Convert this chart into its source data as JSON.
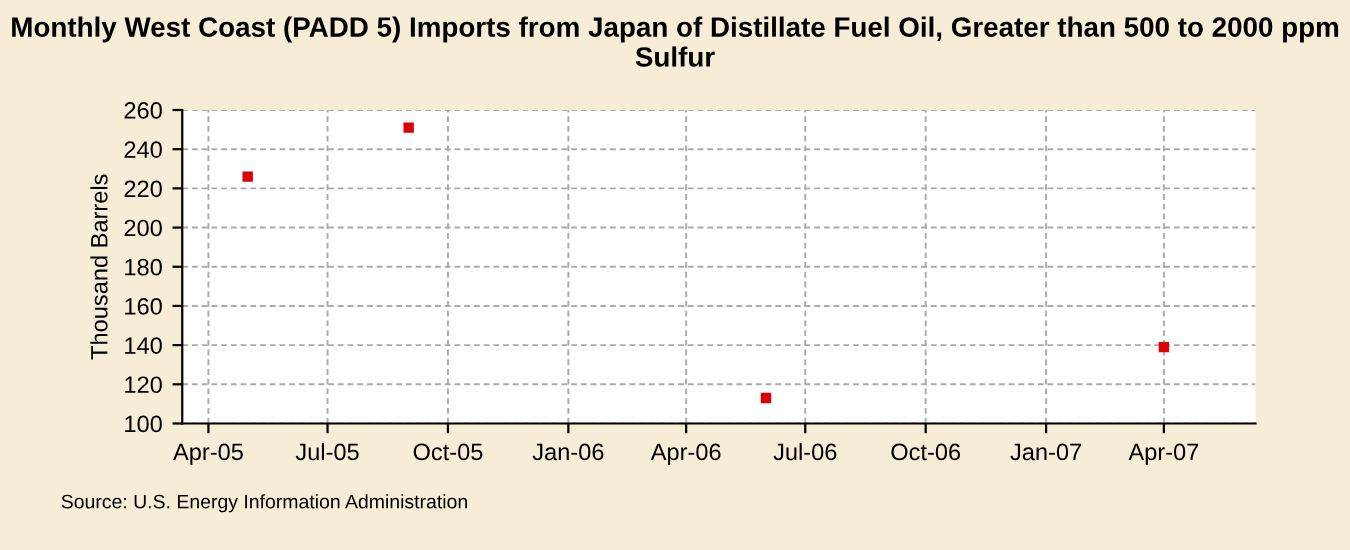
{
  "chart_data": {
    "type": "scatter",
    "title": "Monthly West Coast (PADD 5) Imports from Japan of Distillate Fuel Oil, Greater than 500 to 2000 ppm Sulfur",
    "ylabel": "Thousand Barrels",
    "x": [
      "2005-05",
      "2005-09",
      "2006-06",
      "2007-04"
    ],
    "series": [
      {
        "color": "#dd0000",
        "values": [
          226,
          251,
          113,
          139
        ]
      }
    ],
    "marker": "square",
    "xlim": [
      "2005-03-12",
      "2007-06-10"
    ],
    "xticks": [
      {
        "value": "2005-04",
        "label": "Apr-05"
      },
      {
        "value": "2005-07",
        "label": "Jul-05"
      },
      {
        "value": "2005-10",
        "label": "Oct-05"
      },
      {
        "value": "2006-01",
        "label": "Jan-06"
      },
      {
        "value": "2006-04",
        "label": "Apr-06"
      },
      {
        "value": "2006-07",
        "label": "Jul-06"
      },
      {
        "value": "2006-10",
        "label": "Oct-06"
      },
      {
        "value": "2007-01",
        "label": "Jan-07"
      },
      {
        "value": "2007-04",
        "label": "Apr-07"
      }
    ],
    "ylim": [
      100,
      260
    ],
    "yticks": [
      100,
      120,
      140,
      160,
      180,
      200,
      220,
      240,
      260
    ],
    "grid": true,
    "annotations": [
      "Source: U.S. Energy Information Administration"
    ]
  }
}
